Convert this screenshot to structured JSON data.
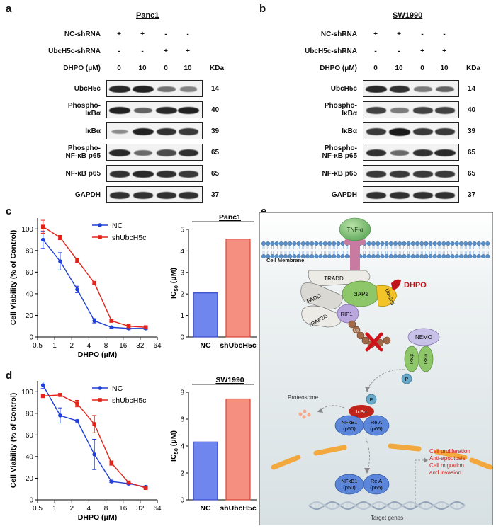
{
  "panels": {
    "a": "a",
    "b": "b",
    "c": "c",
    "d": "d",
    "e": "e"
  },
  "western": [
    {
      "title": "Panc1",
      "rows": [
        {
          "label": "NC-shRNA",
          "values": [
            "+",
            "+",
            "-",
            "-"
          ]
        },
        {
          "label": "UbcH5c-shRNA",
          "values": [
            "-",
            "-",
            "+",
            "+"
          ]
        },
        {
          "label": "DHPO (μM)",
          "values": [
            "0",
            "10",
            "0",
            "10"
          ]
        }
      ],
      "kda_header": "KDa",
      "bands": [
        {
          "line1": "UbcH5c",
          "line2": "",
          "kda": "14",
          "intensity": [
            0.9,
            0.95,
            0.45,
            0.35
          ]
        },
        {
          "line1": "Phospho-",
          "line2": "IκBα",
          "kda": "40",
          "intensity": [
            0.95,
            0.55,
            0.9,
            0.95
          ]
        },
        {
          "line1": "IκBα",
          "line2": "",
          "kda": "39",
          "intensity": [
            0.3,
            0.95,
            0.85,
            0.8
          ]
        },
        {
          "line1": "Phospho-",
          "line2": "NF-κB p65",
          "kda": "65",
          "intensity": [
            0.9,
            0.5,
            0.7,
            0.85
          ]
        },
        {
          "line1": "NF-κB p65",
          "line2": "",
          "kda": "65",
          "intensity": [
            0.85,
            0.9,
            0.85,
            0.8
          ]
        },
        {
          "line1": "GAPDH",
          "line2": "",
          "kda": "37",
          "intensity": [
            0.85,
            0.85,
            0.85,
            0.85
          ]
        }
      ]
    },
    {
      "title": "SW1990",
      "rows": [
        {
          "label": "NC-shRNA",
          "values": [
            "+",
            "+",
            "-",
            "-"
          ]
        },
        {
          "label": "UbcH5c-shRNA",
          "values": [
            "-",
            "-",
            "+",
            "+"
          ]
        },
        {
          "label": "DHPO (μM)",
          "values": [
            "0",
            "10",
            "0",
            "10"
          ]
        }
      ],
      "kda_header": "KDa",
      "bands": [
        {
          "line1": "UbcH5c",
          "line2": "",
          "kda": "14",
          "intensity": [
            0.9,
            0.85,
            0.4,
            0.55
          ]
        },
        {
          "line1": "Phospho-",
          "line2": "IκBα",
          "kda": "40",
          "intensity": [
            0.75,
            0.4,
            0.75,
            0.75
          ]
        },
        {
          "line1": "IκBα",
          "line2": "",
          "kda": "39",
          "intensity": [
            0.8,
            1.0,
            0.8,
            0.8
          ]
        },
        {
          "line1": "Phospho-",
          "line2": "NF-κB p65",
          "kda": "65",
          "intensity": [
            0.85,
            0.5,
            0.85,
            0.9
          ]
        },
        {
          "line1": "NF-κB p65",
          "line2": "",
          "kda": "65",
          "intensity": [
            0.8,
            0.8,
            0.8,
            0.8
          ]
        },
        {
          "line1": "GAPDH",
          "line2": "",
          "kda": "37",
          "intensity": [
            0.85,
            0.85,
            0.85,
            0.85
          ]
        }
      ]
    }
  ],
  "chart_data": [
    {
      "type": "line",
      "panel": "c",
      "ylabel": "Cell Viability (% of Control)",
      "xlabel": "DHPO (μM)",
      "xscale": "log2",
      "xticks": [
        "0.5",
        "1",
        "2",
        "4",
        "8",
        "16",
        "32",
        "64"
      ],
      "yticks": [
        "0",
        "20",
        "40",
        "60",
        "80",
        "100"
      ],
      "ylim": [
        0,
        110
      ],
      "legend": "top-right",
      "series": [
        {
          "name": "NC",
          "color": "#1f3fd6",
          "marker": "circle",
          "x": [
            0.625,
            1.25,
            2.5,
            5,
            10,
            20,
            40
          ],
          "y": [
            90,
            70,
            44,
            15,
            9,
            8,
            8
          ],
          "err": [
            8,
            8,
            3,
            2,
            1,
            1,
            1
          ]
        },
        {
          "name": "shUbcH5c",
          "color": "#e2231a",
          "marker": "square",
          "x": [
            0.625,
            1.25,
            2.5,
            5,
            10,
            20,
            40
          ],
          "y": [
            102,
            92,
            71,
            50,
            15,
            10,
            9
          ],
          "err": [
            6,
            2,
            2,
            1,
            1,
            1,
            1
          ]
        }
      ]
    },
    {
      "type": "bar",
      "panel": "c",
      "title": "Panc1",
      "ylabel": "IC50 (μM)",
      "yticks": [
        "0",
        "1",
        "2",
        "3",
        "4",
        "5"
      ],
      "ylim": [
        0,
        5
      ],
      "categories": [
        "NC",
        "shUbcH5c"
      ],
      "values": [
        2.05,
        4.55
      ],
      "colors": [
        "#6f86ee",
        "#f58f7f"
      ],
      "edges": [
        "#3548c8",
        "#d6453a"
      ]
    },
    {
      "type": "line",
      "panel": "d",
      "ylabel": "Cell Viability (% of Control)",
      "xlabel": "DHPO (μM)",
      "xscale": "log2",
      "xticks": [
        "0.5",
        "1",
        "2",
        "4",
        "8",
        "16",
        "32",
        "64"
      ],
      "yticks": [
        "0",
        "20",
        "40",
        "60",
        "80",
        "100"
      ],
      "ylim": [
        0,
        110
      ],
      "legend": "top-right",
      "series": [
        {
          "name": "NC",
          "color": "#1f3fd6",
          "marker": "circle",
          "x": [
            0.625,
            1.25,
            2.5,
            5,
            10,
            20,
            40
          ],
          "y": [
            106,
            78,
            73,
            42,
            17,
            15,
            12
          ],
          "err": [
            3,
            7,
            1,
            14,
            1,
            1,
            1
          ]
        },
        {
          "name": "shUbcH5c",
          "color": "#e2231a",
          "marker": "square",
          "x": [
            0.625,
            1.25,
            2.5,
            5,
            10,
            20,
            40
          ],
          "y": [
            96,
            97,
            89,
            70,
            34,
            16,
            11
          ],
          "err": [
            1,
            1,
            3,
            8,
            2,
            1,
            1
          ]
        }
      ]
    },
    {
      "type": "bar",
      "panel": "d",
      "title": "SW1990",
      "ylabel": "IC50 (μM)",
      "yticks": [
        "0",
        "2",
        "4",
        "6",
        "8"
      ],
      "ylim": [
        0,
        8
      ],
      "categories": [
        "NC",
        "shUbcH5c"
      ],
      "values": [
        4.3,
        7.5
      ],
      "colors": [
        "#6f86ee",
        "#f58f7f"
      ],
      "edges": [
        "#3548c8",
        "#d6453a"
      ]
    }
  ],
  "diagram": {
    "tnf": "TNF-α",
    "membrane": "Cell Membrane",
    "tradd": "TRADD",
    "fadd": "FADD",
    "traf": "TRAF2/5",
    "ciaps": "cIAPs",
    "ube2d3": "Ube2d3",
    "dhpo": "DHPO",
    "rip1": "RIP1",
    "ub": "Ub",
    "nemo": "NEMO",
    "ikkb": "IKKβ",
    "ikka": "IKKα",
    "p": "P",
    "proteasome": "Proteosome",
    "ikba": "IκBα",
    "nfkb1": "NFκB1",
    "p50": "(p50)",
    "rela": "RelA",
    "p65": "(p65)",
    "outcomes": [
      "Cell proliferation",
      "Anti-apoptosis",
      "Cell migration",
      "and invasion"
    ],
    "target": "Target genes",
    "colors": {
      "bg_top": "#ffffff",
      "bg_bottom": "#dfe6e8",
      "membrane": "#5b8fc7",
      "receptor": "#c97aa0",
      "tnf": "#7cc07a",
      "dhpo": "#c0121a",
      "nemo": "#c9c2e8",
      "ikk": "#8ec66a",
      "ikba": "#c0231a",
      "nfkb": "#5b86d9",
      "nucleus": "#f2a83c",
      "outcome": "#d01a1a"
    }
  }
}
